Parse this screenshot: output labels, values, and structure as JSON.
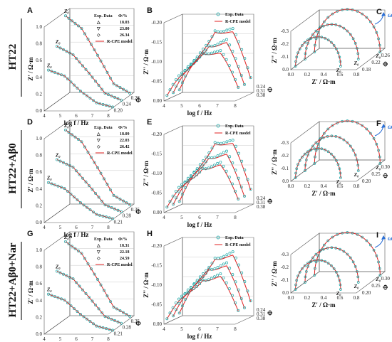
{
  "rows": [
    {
      "label": "HT22"
    },
    {
      "label": "HT22+Aβ0"
    },
    {
      "label": "HT22+Aβ0+Nar"
    }
  ],
  "colors": {
    "data": "#19a6a6",
    "model": "#e02020"
  },
  "chart_data": [
    {
      "panel": "A",
      "type": "line",
      "view": "bode-modulus",
      "xlabel": "log f / Hz",
      "ylabel": "Z' / Ω·m",
      "zlabel": "Φ",
      "x": [
        4,
        5,
        6,
        7,
        8
      ],
      "ylim": [
        0,
        1.0
      ],
      "zticks": [
        "0.20",
        "0.24",
        "0.28"
      ],
      "legend": {
        "header": [
          "Exp. Data",
          "Φ/%"
        ],
        "entries": [
          "18.03",
          "23.00",
          "26.34"
        ],
        "model": "R-CPE model"
      },
      "series": [
        {
          "phi": 0.2,
          "x": [
            4,
            5,
            6,
            7,
            8
          ],
          "values": [
            0.45,
            0.38,
            0.2,
            0.06,
            0.01
          ]
        },
        {
          "phi": 0.24,
          "x": [
            4,
            5,
            6,
            7,
            8
          ],
          "values": [
            0.66,
            0.56,
            0.34,
            0.1,
            0.02
          ]
        },
        {
          "phi": 0.28,
          "x": [
            4,
            5,
            6,
            7,
            8
          ],
          "values": [
            0.95,
            0.8,
            0.48,
            0.14,
            0.03
          ]
        }
      ]
    },
    {
      "panel": "B",
      "type": "line",
      "view": "bode-imag",
      "xlabel": "log f / Hz",
      "ylabel": "Z'' / Ω·m",
      "zlabel": "Φ",
      "x": [
        4,
        5,
        6,
        7,
        8
      ],
      "ylim": [
        0,
        -0.2
      ],
      "zticks": [
        "0.24",
        "0.31",
        "0.38"
      ],
      "legend": {
        "data": "Exp. Data",
        "model": "R-CPE model"
      },
      "series": [
        {
          "phi": 0.24,
          "x": [
            4,
            5,
            6,
            7,
            8
          ],
          "values": [
            -0.01,
            -0.06,
            -0.13,
            -0.11,
            -0.03
          ]
        },
        {
          "phi": 0.31,
          "x": [
            4,
            5,
            6,
            7,
            8
          ],
          "values": [
            -0.01,
            -0.07,
            -0.14,
            -0.13,
            -0.03
          ]
        },
        {
          "phi": 0.38,
          "x": [
            4,
            5,
            6,
            7,
            8
          ],
          "values": [
            -0.01,
            -0.08,
            -0.17,
            -0.15,
            -0.04
          ]
        }
      ]
    },
    {
      "panel": "C",
      "type": "line",
      "view": "nyquist",
      "xlabel": "Z' / Ω·m",
      "ylabel": "Z'' / Ω·m",
      "zlabel": "Φ",
      "xticks": [
        "0.0",
        "0.2",
        "0.4",
        "0.6",
        "0.8"
      ],
      "yticks": [
        "-0.3",
        "-0.2",
        "-0.1",
        "0.0"
      ],
      "zticks": [
        "0.18",
        "0.22",
        "0.26"
      ],
      "annotation": "ω"
    },
    {
      "panel": "D",
      "type": "line",
      "view": "bode-modulus",
      "xlabel": "log f / Hz",
      "ylabel": "Z' / Ω·m",
      "zlabel": "Φ",
      "x": [
        4,
        5,
        6,
        7,
        8
      ],
      "ylim": [
        0,
        1.0
      ],
      "zticks": [
        "0.21",
        "0.28",
        "0.35"
      ],
      "legend": {
        "header": [
          "Exp. Data",
          "Φ/%"
        ],
        "entries": [
          "18.09",
          "22.03",
          "26.42"
        ],
        "model": "R-CPE model"
      },
      "series": [
        {
          "phi": 0.21,
          "x": [
            4,
            5,
            6,
            7,
            8
          ],
          "values": [
            0.44,
            0.37,
            0.2,
            0.06,
            0.01
          ]
        },
        {
          "phi": 0.28,
          "x": [
            4,
            5,
            6,
            7,
            8
          ],
          "values": [
            0.64,
            0.55,
            0.33,
            0.1,
            0.02
          ]
        },
        {
          "phi": 0.35,
          "x": [
            4,
            5,
            6,
            7,
            8
          ],
          "values": [
            0.92,
            0.78,
            0.47,
            0.14,
            0.03
          ]
        }
      ]
    },
    {
      "panel": "E",
      "type": "line",
      "view": "bode-imag",
      "xlabel": "log f / Hz",
      "ylabel": "Z'' / Ω·m",
      "zlabel": "Φ",
      "x": [
        4,
        5,
        6,
        7,
        8
      ],
      "ylim": [
        0,
        -0.2
      ],
      "zticks": [
        "0.24",
        "0.31",
        "0.38"
      ],
      "legend": {
        "data": "Exp. Data",
        "model": "R-CPE model"
      },
      "series": [
        {
          "phi": 0.24,
          "x": [
            4,
            5,
            6,
            7,
            8
          ],
          "values": [
            -0.01,
            -0.06,
            -0.12,
            -0.11,
            -0.03
          ]
        },
        {
          "phi": 0.31,
          "x": [
            4,
            5,
            6,
            7,
            8
          ],
          "values": [
            -0.01,
            -0.07,
            -0.14,
            -0.13,
            -0.03
          ]
        },
        {
          "phi": 0.38,
          "x": [
            4,
            5,
            6,
            7,
            8
          ],
          "values": [
            -0.01,
            -0.08,
            -0.17,
            -0.15,
            -0.04
          ]
        }
      ]
    },
    {
      "panel": "F",
      "type": "line",
      "view": "nyquist",
      "xlabel": "Z' / Ω·m",
      "ylabel": "Z'' / Ω·m",
      "zlabel": "Φ",
      "xticks": [
        "0.0",
        "0.2",
        "0.4",
        "0.6",
        "0.8"
      ],
      "yticks": [
        "-0.3",
        "-0.2",
        "-0.1",
        "0.0"
      ],
      "zticks": [
        "0.20",
        "0.25",
        "0.30"
      ],
      "annotation": "ω"
    },
    {
      "panel": "G",
      "type": "line",
      "view": "bode-modulus",
      "xlabel": "log f / Hz",
      "ylabel": "Z' / Ω·m",
      "zlabel": "Φ",
      "x": [
        4,
        5,
        6,
        7,
        8
      ],
      "ylim": [
        0,
        1.0
      ],
      "zticks": [
        "0.21",
        "0.28",
        "0.35"
      ],
      "legend": {
        "header": [
          "Exp. Data",
          "Φ/%"
        ],
        "entries": [
          "18.31",
          "22.18",
          "24.59"
        ],
        "model": "R-CPE model"
      },
      "series": [
        {
          "phi": 0.21,
          "x": [
            4,
            5,
            6,
            7,
            8
          ],
          "values": [
            0.44,
            0.37,
            0.2,
            0.06,
            0.01
          ]
        },
        {
          "phi": 0.28,
          "x": [
            4,
            5,
            6,
            7,
            8
          ],
          "values": [
            0.64,
            0.55,
            0.33,
            0.1,
            0.02
          ]
        },
        {
          "phi": 0.35,
          "x": [
            4,
            5,
            6,
            7,
            8
          ],
          "values": [
            0.92,
            0.78,
            0.47,
            0.14,
            0.03
          ]
        }
      ]
    },
    {
      "panel": "H",
      "type": "line",
      "view": "bode-imag",
      "xlabel": "log f / Hz",
      "ylabel": "Z'' / Ω·m",
      "zlabel": "Φ",
      "x": [
        4,
        5,
        6,
        7,
        8
      ],
      "ylim": [
        0,
        -0.2
      ],
      "zticks": [
        "0.24",
        "0.31",
        "0.38"
      ],
      "legend": {
        "data": "Exp. Data",
        "model": "R-CPE model"
      },
      "series": [
        {
          "phi": 0.24,
          "x": [
            4,
            5,
            6,
            7,
            8
          ],
          "values": [
            -0.01,
            -0.06,
            -0.12,
            -0.11,
            -0.03
          ]
        },
        {
          "phi": 0.31,
          "x": [
            4,
            5,
            6,
            7,
            8
          ],
          "values": [
            -0.01,
            -0.07,
            -0.14,
            -0.13,
            -0.03
          ]
        },
        {
          "phi": 0.38,
          "x": [
            4,
            5,
            6,
            7,
            8
          ],
          "values": [
            -0.01,
            -0.08,
            -0.16,
            -0.15,
            -0.04
          ]
        }
      ]
    },
    {
      "panel": "I",
      "type": "line",
      "view": "nyquist",
      "xlabel": "Z' / Ω·m",
      "ylabel": "Z'' / Ω·m",
      "zlabel": "Φ",
      "xticks": [
        "0.0",
        "0.2",
        "0.4",
        "0.6",
        "0.8"
      ],
      "yticks": [
        "-0.3",
        "-0.2",
        "-0.1",
        "0.0"
      ],
      "zticks": [
        "0.20",
        "0.25",
        "0.30"
      ],
      "annotation": "ω"
    }
  ]
}
